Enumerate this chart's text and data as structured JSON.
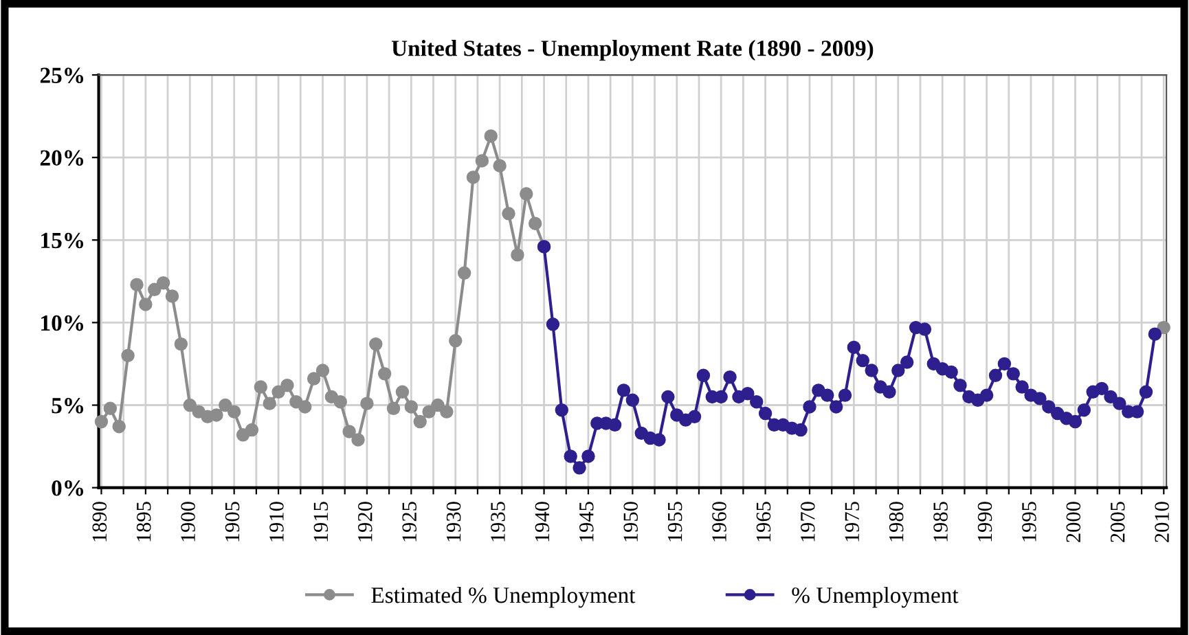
{
  "chart_data": {
    "type": "line",
    "title": "United States - Unemployment Rate (1890 - 2009)",
    "x": [
      1890,
      1891,
      1892,
      1893,
      1894,
      1895,
      1896,
      1897,
      1898,
      1899,
      1900,
      1901,
      1902,
      1903,
      1904,
      1905,
      1906,
      1907,
      1908,
      1909,
      1910,
      1911,
      1912,
      1913,
      1914,
      1915,
      1916,
      1917,
      1918,
      1919,
      1920,
      1921,
      1922,
      1923,
      1924,
      1925,
      1926,
      1927,
      1928,
      1929,
      1930,
      1931,
      1932,
      1933,
      1934,
      1935,
      1936,
      1937,
      1938,
      1939,
      1940,
      1941,
      1942,
      1943,
      1944,
      1945,
      1946,
      1947,
      1948,
      1949,
      1950,
      1951,
      1952,
      1953,
      1954,
      1955,
      1956,
      1957,
      1958,
      1959,
      1960,
      1961,
      1962,
      1963,
      1964,
      1965,
      1966,
      1967,
      1968,
      1969,
      1970,
      1971,
      1972,
      1973,
      1974,
      1975,
      1976,
      1977,
      1978,
      1979,
      1980,
      1981,
      1982,
      1983,
      1984,
      1985,
      1986,
      1987,
      1988,
      1989,
      1990,
      1991,
      1992,
      1993,
      1994,
      1995,
      1996,
      1997,
      1998,
      1999,
      2000,
      2001,
      2002,
      2003,
      2004,
      2005,
      2006,
      2007,
      2008,
      2009,
      2010
    ],
    "series": [
      {
        "name": "Estimated % Unemployment",
        "color": "#8c8c8c",
        "values": [
          4.0,
          4.8,
          3.7,
          8.0,
          12.3,
          11.1,
          12.0,
          12.4,
          11.6,
          8.7,
          5.0,
          4.6,
          4.3,
          4.4,
          5.0,
          4.6,
          3.2,
          3.5,
          6.1,
          5.1,
          5.8,
          6.2,
          5.2,
          4.9,
          6.6,
          7.1,
          5.5,
          5.2,
          3.4,
          2.9,
          5.1,
          8.7,
          6.9,
          4.8,
          5.8,
          4.9,
          4.0,
          4.6,
          5.0,
          4.6,
          8.9,
          13.0,
          18.8,
          19.8,
          21.3,
          19.5,
          16.6,
          14.1,
          17.8,
          16.0,
          14.6,
          null,
          null,
          null,
          null,
          null,
          null,
          null,
          null,
          null,
          null,
          null,
          null,
          null,
          null,
          null,
          null,
          null,
          null,
          null,
          null,
          null,
          null,
          null,
          null,
          null,
          null,
          null,
          null,
          null,
          null,
          null,
          null,
          null,
          null,
          null,
          null,
          null,
          null,
          null,
          null,
          null,
          null,
          null,
          null,
          null,
          null,
          null,
          null,
          null,
          null,
          null,
          null,
          null,
          null,
          null,
          null,
          null,
          null,
          null,
          null,
          null,
          null,
          null,
          null,
          null,
          null,
          null,
          null,
          null,
          9.7
        ]
      },
      {
        "name": "% Unemployment",
        "color": "#2e1f8f",
        "values": [
          null,
          null,
          null,
          null,
          null,
          null,
          null,
          null,
          null,
          null,
          null,
          null,
          null,
          null,
          null,
          null,
          null,
          null,
          null,
          null,
          null,
          null,
          null,
          null,
          null,
          null,
          null,
          null,
          null,
          null,
          null,
          null,
          null,
          null,
          null,
          null,
          null,
          null,
          null,
          null,
          null,
          null,
          null,
          null,
          null,
          null,
          null,
          null,
          null,
          null,
          14.6,
          9.9,
          4.7,
          1.9,
          1.2,
          1.9,
          3.9,
          3.9,
          3.8,
          5.9,
          5.3,
          3.3,
          3.0,
          2.9,
          5.5,
          4.4,
          4.1,
          4.3,
          6.8,
          5.5,
          5.5,
          6.7,
          5.5,
          5.7,
          5.2,
          4.5,
          3.8,
          3.8,
          3.6,
          3.5,
          4.9,
          5.9,
          5.6,
          4.9,
          5.6,
          8.5,
          7.7,
          7.1,
          6.1,
          5.8,
          7.1,
          7.6,
          9.7,
          9.6,
          7.5,
          7.2,
          7.0,
          6.2,
          5.5,
          5.3,
          5.6,
          6.8,
          7.5,
          6.9,
          6.1,
          5.6,
          5.4,
          4.9,
          4.5,
          4.2,
          4.0,
          4.7,
          5.8,
          6.0,
          5.5,
          5.1,
          4.6,
          4.6,
          5.8,
          9.3,
          null
        ]
      }
    ],
    "xlim": [
      1889.7,
      2010.3
    ],
    "xticks": [
      1890,
      {
        "value": 1892.5,
        "label": null
      },
      1895,
      {
        "value": 1897.5,
        "label": null
      },
      1900,
      {
        "value": 1902.5,
        "label": null
      },
      1905,
      {
        "value": 1907.5,
        "label": null
      },
      1910,
      {
        "value": 1912.5,
        "label": null
      },
      1915,
      {
        "value": 1917.5,
        "label": null
      },
      1920,
      {
        "value": 1922.5,
        "label": null
      },
      1925,
      {
        "value": 1927.5,
        "label": null
      },
      1930,
      {
        "value": 1932.5,
        "label": null
      },
      1935,
      {
        "value": 1937.5,
        "label": null
      },
      1940,
      {
        "value": 1942.5,
        "label": null
      },
      1945,
      {
        "value": 1947.5,
        "label": null
      },
      1950,
      {
        "value": 1952.5,
        "label": null
      },
      1955,
      {
        "value": 1957.5,
        "label": null
      },
      1960,
      {
        "value": 1962.5,
        "label": null
      },
      1965,
      {
        "value": 1967.5,
        "label": null
      },
      1970,
      {
        "value": 1972.5,
        "label": null
      },
      1975,
      {
        "value": 1977.5,
        "label": null
      },
      1980,
      {
        "value": 1982.5,
        "label": null
      },
      1985,
      {
        "value": 1987.5,
        "label": null
      },
      1990,
      {
        "value": 1992.5,
        "label": null
      },
      1995,
      {
        "value": 1997.5,
        "label": null
      },
      2000,
      {
        "value": 2002.5,
        "label": null
      },
      2005,
      {
        "value": 2007.5,
        "label": null
      },
      2010
    ],
    "ylim": [
      0,
      25
    ],
    "yticks": [
      {
        "value": 0,
        "label": "0%"
      },
      {
        "value": 5,
        "label": "5%"
      },
      {
        "value": 10,
        "label": "10%"
      },
      {
        "value": 15,
        "label": "15%"
      },
      {
        "value": 20,
        "label": "20%"
      },
      {
        "value": 25,
        "label": "25%"
      }
    ],
    "grid": true,
    "legend": "bottom",
    "marker": "circle",
    "line_style": "solid"
  }
}
